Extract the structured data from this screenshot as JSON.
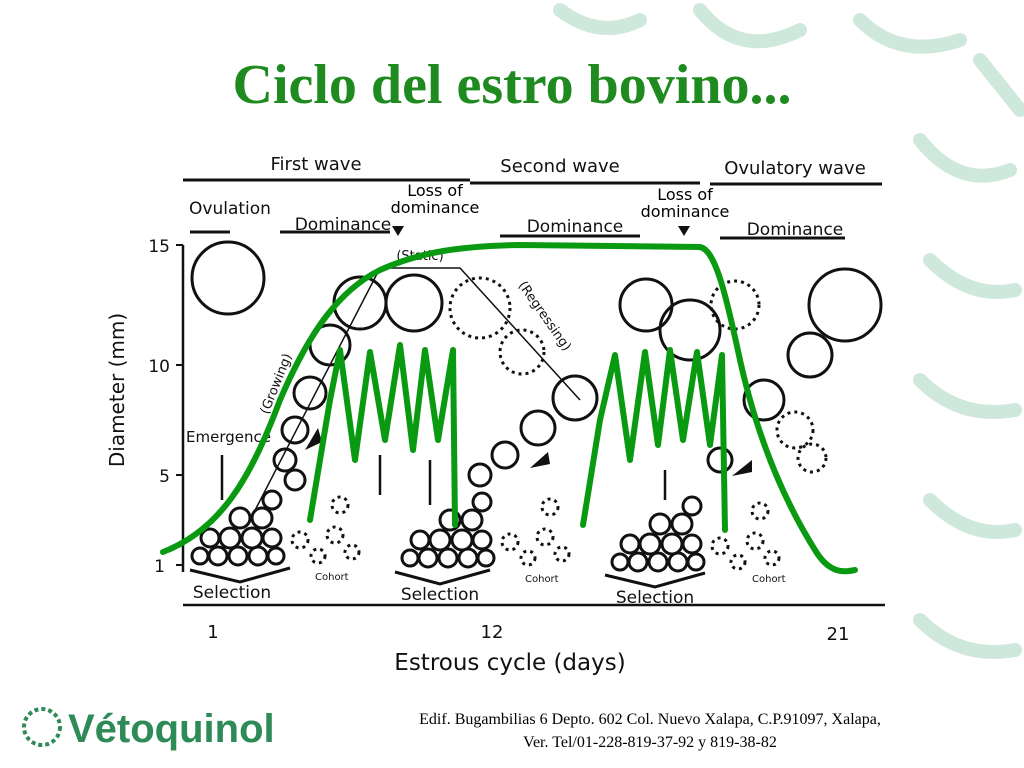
{
  "title": "Ciclo del estro bovino...",
  "diagram": {
    "waves": [
      "First wave",
      "Second wave",
      "Ovulatory wave"
    ],
    "ovulation": "Ovulation",
    "loss_of_dominance": [
      "Loss of dominance",
      "Loss of dominance"
    ],
    "dominance": [
      "Dominance",
      "Dominance",
      "Dominance"
    ],
    "phases": [
      "(Static)",
      "(Growing)",
      "(Regressing)"
    ],
    "emergence": "Emergence",
    "selection": [
      "Selection",
      "Selection",
      "Selection"
    ],
    "cohort": [
      "Cohort",
      "Cohort",
      "Cohort"
    ],
    "y_axis_label": "Diameter (mm)",
    "y_ticks": [
      "15",
      "10",
      "5",
      "1"
    ],
    "x_ticks": [
      "1",
      "12",
      "21"
    ],
    "x_axis_label": "Estrous cycle (days)"
  },
  "footer": {
    "logo": "Vétoquinol",
    "address": [
      "Edif. Bugambilias 6 Depto. 602 Col. Nuevo Xalapa, C.P.91097, Xalapa,",
      "Ver. Tel/01-228-819-37-92 y 819-38-82"
    ]
  }
}
